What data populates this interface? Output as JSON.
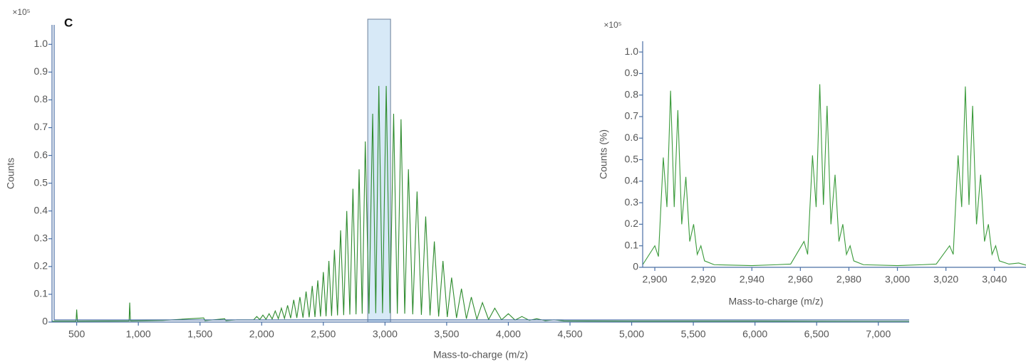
{
  "chart_data": [
    {
      "type": "line",
      "panel_label": "C",
      "y_multiplier": "×10⁵",
      "xlabel": "Mass-to-charge (m/z)",
      "ylabel": "Counts",
      "color": "#2e8b2e",
      "highlight": [
        2860,
        3045
      ],
      "xlim": [
        300,
        7250
      ],
      "ylim": [
        0,
        1.07
      ],
      "xticks": [
        500,
        {
          "value": 1000,
          "label": "1,000"
        },
        {
          "value": 1500,
          "label": "1,500"
        },
        {
          "value": 2000,
          "label": "2,000"
        },
        {
          "value": 2500,
          "label": "2,500"
        },
        {
          "value": 3000,
          "label": "3,000"
        },
        {
          "value": 3500,
          "label": "3,500"
        },
        {
          "value": 4000,
          "label": "4,000"
        },
        {
          "value": 4500,
          "label": "4,500"
        },
        {
          "value": 5000,
          "label": "5,000"
        },
        {
          "value": 5500,
          "label": "5,500"
        },
        {
          "value": 6000,
          "label": "6,000"
        },
        {
          "value": 6500,
          "label": "6,500"
        },
        {
          "value": 7000,
          "label": "7,000"
        }
      ],
      "yticks": [
        0,
        0.1,
        0.2,
        0.3,
        0.4,
        0.5,
        0.6,
        0.7,
        0.8,
        0.9,
        {
          "value": 1,
          "label": "1.0"
        }
      ],
      "x": [
        300,
        495,
        500,
        506,
        925,
        930,
        936,
        1200,
        1530,
        1540,
        1700,
        1710,
        1800,
        1935,
        1960,
        1985,
        2010,
        2035,
        2060,
        2085,
        2110,
        2135,
        2160,
        2185,
        2210,
        2235,
        2260,
        2285,
        2310,
        2335,
        2360,
        2385,
        2410,
        2432,
        2455,
        2477,
        2500,
        2522,
        2545,
        2567,
        2590,
        2615,
        2640,
        2665,
        2690,
        2715,
        2740,
        2765,
        2790,
        2815,
        2840,
        2870,
        2900,
        2925,
        2950,
        2980,
        3010,
        3040,
        3070,
        3100,
        3130,
        3160,
        3190,
        3225,
        3260,
        3295,
        3330,
        3365,
        3400,
        3435,
        3470,
        3505,
        3540,
        3580,
        3620,
        3660,
        3700,
        3745,
        3790,
        3840,
        3890,
        3945,
        4000,
        4055,
        4110,
        4170,
        4230,
        4300,
        4370,
        4450,
        5000,
        6000,
        7000,
        7250
      ],
      "values": [
        0.003,
        0.003,
        0.045,
        0.003,
        0.004,
        0.07,
        0.004,
        0.006,
        0.015,
        0.005,
        0.012,
        0.005,
        0.008,
        0.008,
        0.02,
        0.009,
        0.025,
        0.01,
        0.03,
        0.011,
        0.04,
        0.012,
        0.05,
        0.013,
        0.06,
        0.014,
        0.08,
        0.015,
        0.09,
        0.016,
        0.11,
        0.017,
        0.13,
        0.018,
        0.15,
        0.02,
        0.18,
        0.021,
        0.22,
        0.022,
        0.26,
        0.024,
        0.33,
        0.025,
        0.4,
        0.027,
        0.48,
        0.028,
        0.55,
        0.03,
        0.65,
        0.03,
        0.75,
        0.032,
        0.85,
        0.032,
        0.85,
        0.032,
        0.75,
        0.03,
        0.73,
        0.03,
        0.55,
        0.028,
        0.47,
        0.026,
        0.38,
        0.024,
        0.29,
        0.02,
        0.22,
        0.018,
        0.16,
        0.015,
        0.12,
        0.012,
        0.09,
        0.01,
        0.07,
        0.009,
        0.05,
        0.008,
        0.03,
        0.007,
        0.02,
        0.006,
        0.012,
        0.005,
        0.008,
        0.004,
        0.003,
        0.003,
        0.002,
        0.002
      ]
    },
    {
      "type": "line",
      "y_multiplier": "×10⁵",
      "xlabel": "Mass-to-charge (m/z)",
      "ylabel": "Counts (%)",
      "color": "#3a9a3a",
      "xlim": [
        2895,
        3053
      ],
      "ylim": [
        0,
        1.05
      ],
      "xticks": [
        {
          "value": 2900,
          "label": "2,900"
        },
        {
          "value": 2920,
          "label": "2,920"
        },
        {
          "value": 2940,
          "label": "2,940"
        },
        {
          "value": 2960,
          "label": "2,960"
        },
        {
          "value": 2980,
          "label": "2,980"
        },
        {
          "value": 3000,
          "label": "3,000"
        },
        {
          "value": 3020,
          "label": "3,020"
        },
        {
          "value": 3040,
          "label": "3,040"
        }
      ],
      "yticks": [
        0,
        0.1,
        0.2,
        0.3,
        0.4,
        0.5,
        0.6,
        0.7,
        0.8,
        0.9,
        {
          "value": 1,
          "label": "1.0"
        }
      ],
      "x": [
        2895,
        2900,
        2901.5,
        2903.5,
        2905,
        2906.5,
        2908,
        2909.5,
        2911.1,
        2912.8,
        2914.4,
        2916,
        2917.5,
        2919,
        2920.5,
        2924.5,
        2940,
        2950,
        2956,
        2961.5,
        2963,
        2965,
        2966.5,
        2968,
        2969.5,
        2971,
        2972.6,
        2974.3,
        2975.9,
        2977.5,
        2979,
        2980.5,
        2982,
        2986,
        3000,
        3010,
        3016,
        3021.5,
        3023,
        3025,
        3026.5,
        3028,
        3029.5,
        3031,
        3032.6,
        3034.3,
        3035.9,
        3037.5,
        3039,
        3040.5,
        3042,
        3046,
        3050,
        3053
      ],
      "values": [
        0.012,
        0.1,
        0.05,
        0.51,
        0.28,
        0.82,
        0.28,
        0.73,
        0.2,
        0.42,
        0.12,
        0.2,
        0.06,
        0.1,
        0.03,
        0.012,
        0.008,
        0.012,
        0.015,
        0.12,
        0.06,
        0.52,
        0.28,
        0.85,
        0.29,
        0.75,
        0.2,
        0.43,
        0.12,
        0.2,
        0.06,
        0.1,
        0.03,
        0.012,
        0.008,
        0.012,
        0.015,
        0.1,
        0.06,
        0.52,
        0.28,
        0.84,
        0.29,
        0.75,
        0.2,
        0.43,
        0.12,
        0.2,
        0.06,
        0.1,
        0.03,
        0.015,
        0.02,
        0.01
      ]
    }
  ]
}
